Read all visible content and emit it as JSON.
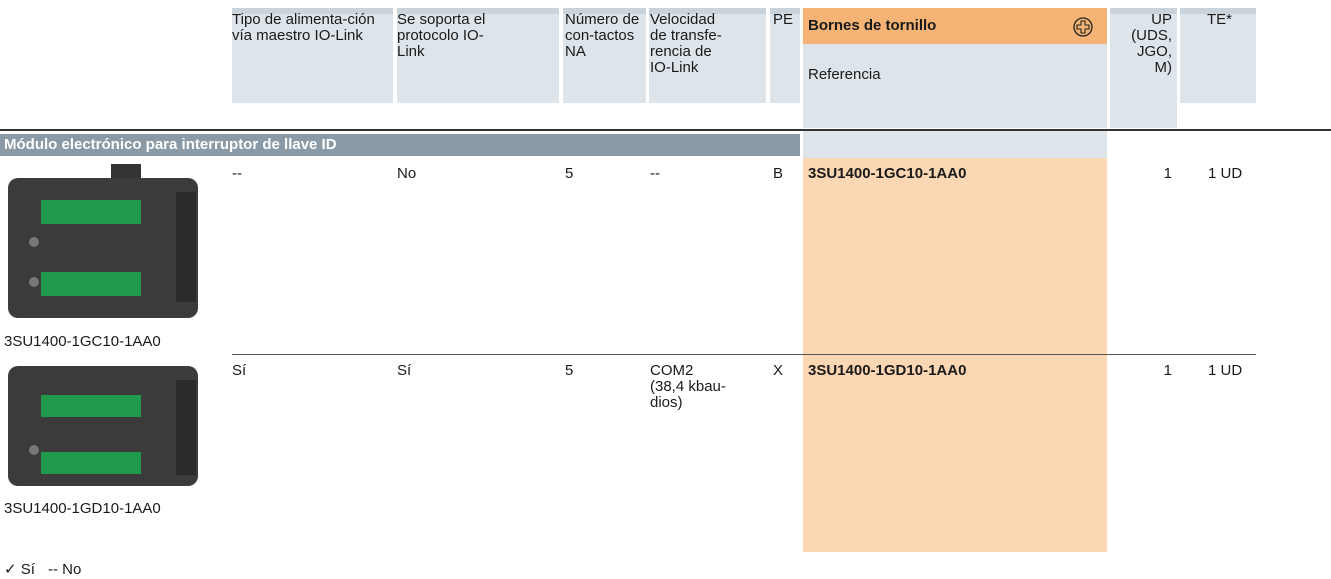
{
  "header": {
    "columns": [
      "Tipo de alimenta-ción vía maestro IO-Link",
      "Se soporta el protocolo IO-Link",
      "Número de con-tactos NA",
      "Velocidad de transfe-rencia de IO-Link",
      "PE",
      "UP (UDS, JGO, M)",
      "TE*"
    ],
    "group": "Bornes de tornillo",
    "reference": "Referencia"
  },
  "section": {
    "title": "Módulo electrónico para interruptor de llave ID"
  },
  "rows": [
    {
      "caption": "3SU1400-1GC10-1AA0",
      "cells": [
        "--",
        "No",
        "5",
        "--",
        "B"
      ],
      "reference": "3SU1400-1GC10-1AA0",
      "up": "1",
      "te": "1 UD"
    },
    {
      "caption": "3SU1400-1GD10-1AA0",
      "cells": [
        "Sí",
        "Sí",
        "5",
        "COM2 (38,4 kbau-dios)",
        "X"
      ],
      "reference": "3SU1400-1GD10-1AA0",
      "up": "1",
      "te": "1 UD"
    }
  ],
  "legend": {
    "yes": "✓ Sí",
    "no": "-- No"
  }
}
